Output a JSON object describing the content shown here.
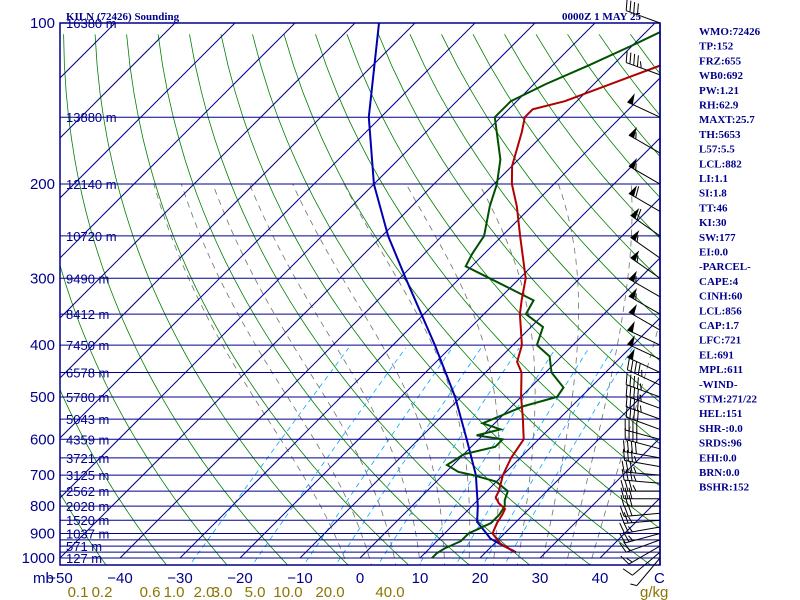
{
  "header": {
    "station": "KILN (72426) Sounding",
    "time": "0000Z  1 MAY 25"
  },
  "indices": [
    "WMO:72426",
    "TP:152",
    "FRZ:655",
    "WB0:692",
    "PW:1.21",
    "RH:62.9",
    "MAXT:25.7",
    "TH:5653",
    "L57:5.5",
    "LCL:882",
    "LI:1.1",
    "SI:1.8",
    "TT:46",
    "KI:30",
    "SW:177",
    "EI:0.0",
    "-PARCEL-",
    "CAPE:4",
    "CINH:60",
    "LCL:856",
    "CAP:1.7",
    "LFC:721",
    "EL:691",
    "MPL:611",
    "-WIND-",
    "STM:271/22",
    "HEL:151",
    "SHR-:0.0",
    "SRDS:96",
    "EHI:0.0",
    "BRN:0.0",
    "BSHR:152"
  ],
  "colors": {
    "frame": "#00008b",
    "isobar": "#00008b",
    "isotherm": "#00008b",
    "dry_adiabat": "#008000",
    "mixing_ratio": "#00aaff",
    "moist_adiabat": "#707070",
    "temperature": "#b00000",
    "dewpoint": "#005000",
    "parcel": "#0000b0",
    "wind": "#000000",
    "mixing_ratio_labels": "#8b7500"
  },
  "chart_data": {
    "type": "skew-T log-p sounding",
    "title": "KILN (72426) Sounding",
    "x_unit_label": "C",
    "y_unit_label": "mb",
    "mixing_ratio_unit_label": "g/kg",
    "pressure_range_mb": [
      1000,
      100
    ],
    "temperature_range_c": [
      -50,
      50
    ],
    "pressure_ticks": [
      {
        "p": 100,
        "label": "100"
      },
      {
        "p": 200,
        "label": "200"
      },
      {
        "p": 300,
        "label": "300"
      },
      {
        "p": 400,
        "label": "400"
      },
      {
        "p": 500,
        "label": "500"
      },
      {
        "p": 600,
        "label": "600"
      },
      {
        "p": 700,
        "label": "700"
      },
      {
        "p": 800,
        "label": "800"
      },
      {
        "p": 900,
        "label": "900"
      },
      {
        "p": 1000,
        "label": "1000"
      }
    ],
    "temperature_ticks": [
      {
        "t": -50,
        "label": "−50"
      },
      {
        "t": -40,
        "label": "−40"
      },
      {
        "t": -30,
        "label": "−30"
      },
      {
        "t": -20,
        "label": "−20"
      },
      {
        "t": -10,
        "label": "−10"
      },
      {
        "t": 0,
        "label": "0"
      },
      {
        "t": 10,
        "label": "10"
      },
      {
        "t": 20,
        "label": "20"
      },
      {
        "t": 30,
        "label": "30"
      },
      {
        "t": 40,
        "label": "40"
      }
    ],
    "mixing_ratio_ticks": [
      {
        "t": -47,
        "label": "0.1"
      },
      {
        "t": -43,
        "label": "0.2"
      },
      {
        "t": -35,
        "label": "0.6"
      },
      {
        "t": -31,
        "label": "1.0"
      },
      {
        "t": -26,
        "label": "2.0"
      },
      {
        "t": -23,
        "label": "3.0"
      },
      {
        "t": -17.5,
        "label": "5.0"
      },
      {
        "t": -12,
        "label": "10.0"
      },
      {
        "t": -5,
        "label": "20.0"
      },
      {
        "t": 5,
        "label": "40.0"
      }
    ],
    "height_labels": [
      {
        "p": 100,
        "label": "16380 m"
      },
      {
        "p": 150,
        "label": "13880 m"
      },
      {
        "p": 200,
        "label": "12140 m"
      },
      {
        "p": 250,
        "label": "10720 m"
      },
      {
        "p": 300,
        "label": "9490 m"
      },
      {
        "p": 350,
        "label": "8412 m"
      },
      {
        "p": 400,
        "label": "7450 m"
      },
      {
        "p": 450,
        "label": "6578 m"
      },
      {
        "p": 500,
        "label": "5780 m"
      },
      {
        "p": 550,
        "label": "5043 m"
      },
      {
        "p": 600,
        "label": "4359 m"
      },
      {
        "p": 650,
        "label": "3721 m"
      },
      {
        "p": 700,
        "label": "3125 m"
      },
      {
        "p": 750,
        "label": "2562 m"
      },
      {
        "p": 800,
        "label": "2028 m"
      },
      {
        "p": 850,
        "label": "1520 m"
      },
      {
        "p": 900,
        "label": "1037 m"
      },
      {
        "p": 950,
        "label": "571 m"
      },
      {
        "p": 1000,
        "label": "127 m"
      }
    ],
    "isobars_mb": [
      100,
      150,
      200,
      250,
      300,
      350,
      400,
      450,
      500,
      550,
      600,
      650,
      700,
      750,
      800,
      850,
      900,
      925,
      950,
      975,
      1000
    ],
    "temperature_profile": [
      {
        "p": 975,
        "t": 24.8
      },
      {
        "p": 940,
        "t": 21.0
      },
      {
        "p": 900,
        "t": 18.0
      },
      {
        "p": 860,
        "t": 17.0
      },
      {
        "p": 830,
        "t": 16.5
      },
      {
        "p": 810,
        "t": 16.0
      },
      {
        "p": 790,
        "t": 14.0
      },
      {
        "p": 770,
        "t": 12.5
      },
      {
        "p": 750,
        "t": 12.0
      },
      {
        "p": 700,
        "t": 10.0
      },
      {
        "p": 650,
        "t": 8.5
      },
      {
        "p": 600,
        "t": 7.5
      },
      {
        "p": 550,
        "t": 4.0
      },
      {
        "p": 500,
        "t": 0.0
      },
      {
        "p": 450,
        "t": -4.0
      },
      {
        "p": 430,
        "t": -6.5
      },
      {
        "p": 400,
        "t": -8.5
      },
      {
        "p": 350,
        "t": -14.0
      },
      {
        "p": 330,
        "t": -16.0
      },
      {
        "p": 300,
        "t": -19.0
      },
      {
        "p": 250,
        "t": -27.0
      },
      {
        "p": 220,
        "t": -32.5
      },
      {
        "p": 200,
        "t": -37.0
      },
      {
        "p": 185,
        "t": -40.0
      },
      {
        "p": 160,
        "t": -44.0
      },
      {
        "p": 150,
        "t": -46.0
      },
      {
        "p": 145,
        "t": -46.0
      },
      {
        "p": 140,
        "t": -42.0
      },
      {
        "p": 120,
        "t": -32.0
      },
      {
        "p": 100,
        "t": -20.0
      }
    ],
    "dewpoint_profile": [
      {
        "p": 1000,
        "t": 12.0
      },
      {
        "p": 980,
        "t": 12.0
      },
      {
        "p": 960,
        "t": 12.5
      },
      {
        "p": 930,
        "t": 14.0
      },
      {
        "p": 900,
        "t": 14.0
      },
      {
        "p": 880,
        "t": 15.0
      },
      {
        "p": 860,
        "t": 16.0
      },
      {
        "p": 830,
        "t": 16.0
      },
      {
        "p": 800,
        "t": 15.5
      },
      {
        "p": 780,
        "t": 14.5
      },
      {
        "p": 750,
        "t": 13.5
      },
      {
        "p": 720,
        "t": 10.0
      },
      {
        "p": 700,
        "t": 5.0
      },
      {
        "p": 690,
        "t": 2.0
      },
      {
        "p": 670,
        "t": -1.0
      },
      {
        "p": 640,
        "t": 0.0
      },
      {
        "p": 620,
        "t": 4.0
      },
      {
        "p": 600,
        "t": 4.0
      },
      {
        "p": 590,
        "t": -1.0
      },
      {
        "p": 575,
        "t": 2.0
      },
      {
        "p": 560,
        "t": -2.0
      },
      {
        "p": 520,
        "t": 2.0
      },
      {
        "p": 500,
        "t": 6.0
      },
      {
        "p": 480,
        "t": 5.5
      },
      {
        "p": 450,
        "t": 1.0
      },
      {
        "p": 420,
        "t": -2.0
      },
      {
        "p": 400,
        "t": -6.0
      },
      {
        "p": 370,
        "t": -8.0
      },
      {
        "p": 350,
        "t": -13.0
      },
      {
        "p": 330,
        "t": -14.0
      },
      {
        "p": 300,
        "t": -25.0
      },
      {
        "p": 285,
        "t": -31.0
      },
      {
        "p": 270,
        "t": -32.0
      },
      {
        "p": 250,
        "t": -33.0
      },
      {
        "p": 220,
        "t": -37.0
      },
      {
        "p": 200,
        "t": -39.5
      },
      {
        "p": 180,
        "t": -43.0
      },
      {
        "p": 150,
        "t": -51.0
      },
      {
        "p": 140,
        "t": -51.0
      },
      {
        "p": 130,
        "t": -48.0
      },
      {
        "p": 120,
        "t": -44.0
      },
      {
        "p": 110,
        "t": -40.0
      },
      {
        "p": 100,
        "t": -36.0
      }
    ],
    "parcel_profile": [
      {
        "p": 975,
        "t": 25.0
      },
      {
        "p": 950,
        "t": 22.0
      },
      {
        "p": 920,
        "t": 18.5
      },
      {
        "p": 900,
        "t": 17.0
      },
      {
        "p": 856,
        "t": 13.5
      },
      {
        "p": 800,
        "t": 11.0
      },
      {
        "p": 700,
        "t": 5.5
      },
      {
        "p": 600,
        "t": -2.0
      },
      {
        "p": 500,
        "t": -11.0
      },
      {
        "p": 400,
        "t": -23.0
      },
      {
        "p": 300,
        "t": -39.0
      },
      {
        "p": 250,
        "t": -49.0
      },
      {
        "p": 200,
        "t": -60.0
      },
      {
        "p": 150,
        "t": -72.0
      },
      {
        "p": 100,
        "t": -86.0
      }
    ],
    "wind_barbs": [
      {
        "p": 1000,
        "dir": 220,
        "spd": 5
      },
      {
        "p": 975,
        "dir": 230,
        "spd": 10
      },
      {
        "p": 950,
        "dir": 240,
        "spd": 15
      },
      {
        "p": 925,
        "dir": 250,
        "spd": 20
      },
      {
        "p": 900,
        "dir": 255,
        "spd": 25
      },
      {
        "p": 875,
        "dir": 260,
        "spd": 25
      },
      {
        "p": 850,
        "dir": 265,
        "spd": 25
      },
      {
        "p": 825,
        "dir": 265,
        "spd": 30
      },
      {
        "p": 800,
        "dir": 270,
        "spd": 30
      },
      {
        "p": 775,
        "dir": 270,
        "spd": 30
      },
      {
        "p": 750,
        "dir": 270,
        "spd": 35
      },
      {
        "p": 725,
        "dir": 275,
        "spd": 35
      },
      {
        "p": 700,
        "dir": 275,
        "spd": 35
      },
      {
        "p": 675,
        "dir": 280,
        "spd": 35
      },
      {
        "p": 650,
        "dir": 280,
        "spd": 40
      },
      {
        "p": 625,
        "dir": 285,
        "spd": 40
      },
      {
        "p": 600,
        "dir": 285,
        "spd": 40
      },
      {
        "p": 575,
        "dir": 290,
        "spd": 40
      },
      {
        "p": 550,
        "dir": 290,
        "spd": 45
      },
      {
        "p": 525,
        "dir": 290,
        "spd": 45
      },
      {
        "p": 500,
        "dir": 290,
        "spd": 45
      },
      {
        "p": 475,
        "dir": 295,
        "spd": 45
      },
      {
        "p": 450,
        "dir": 295,
        "spd": 50
      },
      {
        "p": 425,
        "dir": 295,
        "spd": 50
      },
      {
        "p": 400,
        "dir": 295,
        "spd": 50
      },
      {
        "p": 375,
        "dir": 300,
        "spd": 50
      },
      {
        "p": 350,
        "dir": 300,
        "spd": 55
      },
      {
        "p": 325,
        "dir": 300,
        "spd": 55
      },
      {
        "p": 300,
        "dir": 305,
        "spd": 55
      },
      {
        "p": 275,
        "dir": 305,
        "spd": 55
      },
      {
        "p": 250,
        "dir": 305,
        "spd": 60
      },
      {
        "p": 225,
        "dir": 300,
        "spd": 60
      },
      {
        "p": 200,
        "dir": 300,
        "spd": 55
      },
      {
        "p": 175,
        "dir": 300,
        "spd": 55
      },
      {
        "p": 150,
        "dir": 295,
        "spd": 50
      },
      {
        "p": 125,
        "dir": 290,
        "spd": 45
      },
      {
        "p": 100,
        "dir": 290,
        "spd": 40
      }
    ]
  }
}
